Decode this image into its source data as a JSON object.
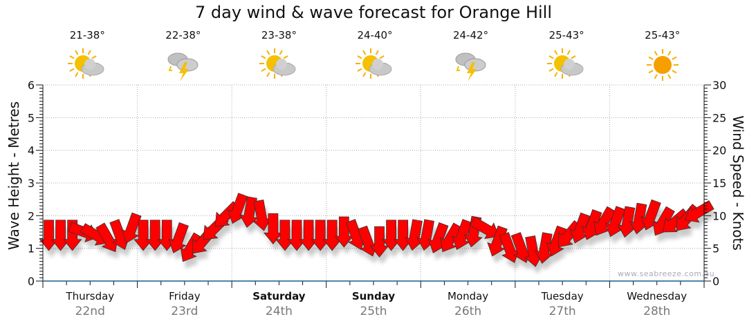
{
  "title": "7 day wind & wave forecast for Orange Hill",
  "watermark": "www.seabreeze.com.au",
  "days": [
    {
      "name": "Thursday",
      "date": "22nd",
      "temp": "21-38°",
      "icon": "partly-cloudy",
      "bold": false
    },
    {
      "name": "Friday",
      "date": "23rd",
      "temp": "22-38°",
      "icon": "thunderstorm",
      "bold": false
    },
    {
      "name": "Saturday",
      "date": "24th",
      "temp": "23-38°",
      "icon": "partly-cloudy",
      "bold": true
    },
    {
      "name": "Sunday",
      "date": "25th",
      "temp": "24-40°",
      "icon": "partly-cloudy",
      "bold": true
    },
    {
      "name": "Monday",
      "date": "26th",
      "temp": "24-42°",
      "icon": "thunderstorm",
      "bold": false
    },
    {
      "name": "Tuesday",
      "date": "27th",
      "temp": "25-43°",
      "icon": "partly-cloudy",
      "bold": false
    },
    {
      "name": "Wednesday",
      "date": "28th",
      "temp": "25-43°",
      "icon": "sunny",
      "bold": false
    }
  ],
  "colors": {
    "arrow": "#ff0000",
    "axis": "#1a5a8a",
    "grid": "#aaaaaa"
  },
  "chart_data": {
    "type": "line",
    "title": "7 day wind & wave forecast for Orange Hill",
    "ylabel_left": "Wave Height - Metres",
    "ylabel_right": "Wind Speed - Knots",
    "ylim_left": [
      0,
      6
    ],
    "yticks_left": [
      0,
      1,
      2,
      3,
      4,
      5,
      6
    ],
    "ylim_right": [
      0,
      30
    ],
    "yticks_right": [
      0,
      5,
      10,
      15,
      20,
      25,
      30
    ],
    "grid": true,
    "x_interval_hours": 3,
    "series": [
      {
        "name": "Wind speed (knots)",
        "values": [
          7,
          7,
          7,
          7.5,
          7,
          6.5,
          7,
          8,
          7,
          7,
          7,
          6.5,
          5,
          6,
          8,
          10,
          11,
          10.5,
          10,
          8,
          7,
          7,
          7,
          7,
          7,
          7.5,
          7,
          6,
          6,
          7,
          7,
          7,
          7,
          6.5,
          6.5,
          7,
          7.5,
          8,
          6,
          5,
          5,
          4.5,
          5,
          6,
          7,
          8,
          8.5,
          9,
          9,
          9,
          9.5,
          10,
          9,
          9,
          9.5,
          10.5
        ]
      },
      {
        "name": "Wind direction (arrow heading, deg)",
        "values": [
          180,
          180,
          180,
          110,
          120,
          150,
          160,
          200,
          180,
          180,
          180,
          200,
          210,
          220,
          225,
          225,
          200,
          190,
          170,
          180,
          180,
          180,
          180,
          180,
          180,
          180,
          160,
          160,
          180,
          180,
          180,
          190,
          190,
          200,
          210,
          200,
          190,
          120,
          200,
          160,
          160,
          170,
          190,
          200,
          220,
          200,
          200,
          210,
          200,
          190,
          190,
          200,
          210,
          230,
          220,
          240
        ]
      }
    ]
  }
}
